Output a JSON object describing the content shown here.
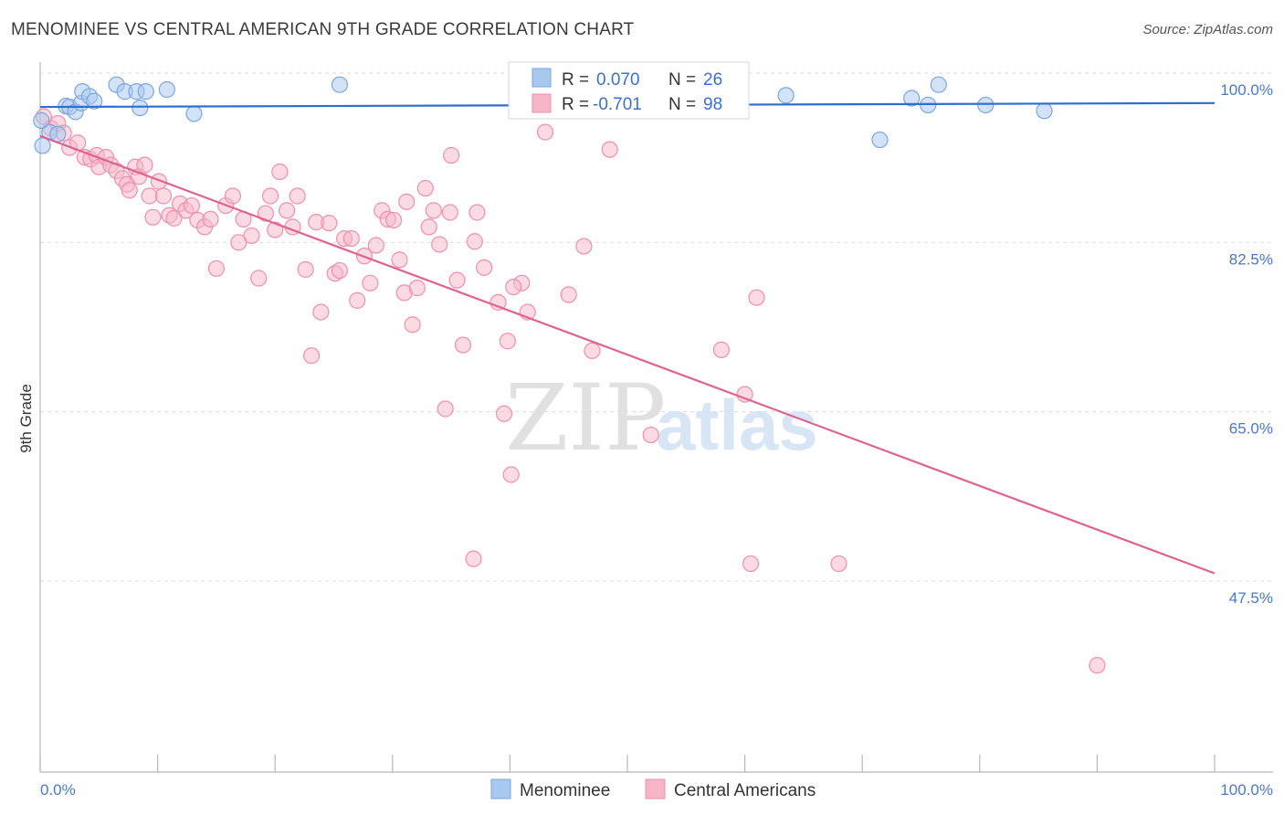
{
  "header": {
    "title": "MENOMINEE VS CENTRAL AMERICAN 9TH GRADE CORRELATION CHART",
    "source": "Source: ZipAtlas.com"
  },
  "watermark": {
    "zip": "ZIP",
    "atlas": "atlas"
  },
  "legend": {
    "rows": [
      {
        "r_label": "R = ",
        "r_value": "0.070",
        "n_label": "N = ",
        "n_value": "26",
        "color": "#a8c8f0"
      },
      {
        "r_label": "R = ",
        "r_value": "-0.701",
        "n_label": "N = ",
        "n_value": "98",
        "color": "#f7b6c8"
      }
    ]
  },
  "bottom_legend": {
    "items": [
      {
        "label": "Menominee",
        "color": "#a8c8f0"
      },
      {
        "label": "Central Americans",
        "color": "#f7b6c8"
      }
    ]
  },
  "chart_data": {
    "type": "scatter",
    "xlabel": "",
    "ylabel": "9th Grade",
    "xlim": [
      0,
      100
    ],
    "ylim": [
      32,
      102
    ],
    "x_tick_labels": [
      "0.0%",
      "100.0%"
    ],
    "y_ticks": [
      100.0,
      82.5,
      65.0,
      47.5
    ],
    "y_tick_labels": [
      "100.0%",
      "82.5%",
      "65.0%",
      "47.5%"
    ],
    "grid": true,
    "legend_placement": "top-center",
    "series": [
      {
        "name": "Menominee",
        "color": "#a8c8f0",
        "stroke": "#7aa6de",
        "line_color": "#2c6fd1",
        "trend": [
          [
            0,
            98.2
          ],
          [
            100,
            98.6
          ]
        ],
        "points": [
          [
            0.2,
            94.2
          ],
          [
            0.8,
            95.6
          ],
          [
            1.5,
            95.4
          ],
          [
            2.2,
            98.3
          ],
          [
            2.5,
            98.2
          ],
          [
            3.0,
            97.7
          ],
          [
            3.5,
            98.6
          ],
          [
            3.6,
            99.8
          ],
          [
            4.2,
            99.3
          ],
          [
            4.6,
            98.8
          ],
          [
            6.5,
            100.5
          ],
          [
            7.2,
            99.8
          ],
          [
            8.2,
            99.8
          ],
          [
            8.5,
            98.1
          ],
          [
            9.0,
            99.8
          ],
          [
            10.8,
            100.0
          ],
          [
            13.1,
            97.5
          ],
          [
            25.5,
            100.5
          ],
          [
            63.5,
            99.4
          ],
          [
            71.5,
            94.8
          ],
          [
            74.2,
            99.1
          ],
          [
            75.6,
            98.4
          ],
          [
            76.5,
            100.5
          ],
          [
            80.5,
            98.4
          ],
          [
            85.5,
            97.8
          ],
          [
            0.1,
            96.8
          ]
        ]
      },
      {
        "name": "Central Americans",
        "color": "#f7b6c8",
        "stroke": "#ee8fae",
        "line_color": "#e0628f",
        "trend": [
          [
            0,
            95.2
          ],
          [
            100,
            50.0
          ]
        ],
        "points": [
          [
            0.3,
            97.2
          ],
          [
            0.9,
            96.0
          ],
          [
            1.5,
            96.5
          ],
          [
            2.0,
            95.5
          ],
          [
            2.5,
            94.0
          ],
          [
            3.2,
            94.5
          ],
          [
            3.8,
            93.0
          ],
          [
            4.3,
            92.8
          ],
          [
            4.8,
            93.2
          ],
          [
            5.0,
            92.0
          ],
          [
            5.6,
            93.0
          ],
          [
            6.0,
            92.2
          ],
          [
            6.5,
            91.6
          ],
          [
            7.0,
            90.8
          ],
          [
            7.4,
            90.2
          ],
          [
            7.6,
            89.6
          ],
          [
            8.1,
            92.0
          ],
          [
            8.4,
            91.0
          ],
          [
            8.9,
            92.2
          ],
          [
            9.3,
            89.0
          ],
          [
            9.6,
            86.8
          ],
          [
            10.1,
            90.5
          ],
          [
            10.5,
            89.0
          ],
          [
            11.0,
            87.0
          ],
          [
            11.4,
            86.7
          ],
          [
            11.9,
            88.2
          ],
          [
            12.4,
            87.5
          ],
          [
            12.9,
            88.0
          ],
          [
            13.4,
            86.5
          ],
          [
            14.0,
            85.8
          ],
          [
            14.5,
            86.6
          ],
          [
            15.0,
            81.5
          ],
          [
            15.8,
            88.0
          ],
          [
            16.4,
            89.0
          ],
          [
            16.9,
            84.2
          ],
          [
            17.3,
            86.6
          ],
          [
            18.0,
            84.9
          ],
          [
            18.6,
            80.5
          ],
          [
            19.2,
            87.2
          ],
          [
            19.6,
            89.0
          ],
          [
            20.0,
            85.5
          ],
          [
            20.4,
            91.5
          ],
          [
            21.0,
            87.5
          ],
          [
            21.5,
            85.8
          ],
          [
            21.9,
            89.0
          ],
          [
            22.6,
            81.4
          ],
          [
            23.1,
            72.5
          ],
          [
            23.5,
            86.3
          ],
          [
            23.9,
            77.0
          ],
          [
            24.6,
            86.2
          ],
          [
            25.1,
            81.0
          ],
          [
            25.5,
            81.3
          ],
          [
            25.9,
            84.6
          ],
          [
            26.5,
            84.6
          ],
          [
            27.0,
            78.2
          ],
          [
            27.6,
            82.8
          ],
          [
            28.1,
            80.0
          ],
          [
            28.6,
            83.9
          ],
          [
            29.1,
            87.5
          ],
          [
            29.6,
            86.6
          ],
          [
            30.1,
            86.5
          ],
          [
            30.6,
            82.4
          ],
          [
            31.0,
            79.0
          ],
          [
            31.2,
            88.4
          ],
          [
            31.7,
            75.7
          ],
          [
            32.1,
            79.5
          ],
          [
            32.8,
            89.8
          ],
          [
            33.1,
            85.8
          ],
          [
            33.5,
            87.5
          ],
          [
            34.0,
            84.0
          ],
          [
            34.5,
            67.0
          ],
          [
            34.9,
            87.3
          ],
          [
            35.5,
            80.3
          ],
          [
            36.0,
            73.6
          ],
          [
            37.0,
            84.3
          ],
          [
            37.2,
            87.3
          ],
          [
            37.8,
            81.6
          ],
          [
            39.0,
            78.0
          ],
          [
            39.5,
            66.5
          ],
          [
            39.8,
            74.0
          ],
          [
            40.1,
            60.2
          ],
          [
            41.0,
            80.0
          ],
          [
            41.5,
            77.0
          ],
          [
            43.0,
            95.6
          ],
          [
            45.0,
            78.8
          ],
          [
            46.3,
            83.8
          ],
          [
            47.0,
            73.0
          ],
          [
            48.5,
            93.8
          ],
          [
            52.0,
            64.3
          ],
          [
            58.0,
            73.1
          ],
          [
            60.0,
            68.5
          ],
          [
            61.0,
            78.5
          ],
          [
            68.0,
            51.0
          ],
          [
            90.0,
            40.5
          ],
          [
            40.3,
            79.6
          ],
          [
            35.0,
            93.2
          ],
          [
            36.9,
            51.5
          ],
          [
            60.5,
            51.0
          ]
        ]
      }
    ]
  }
}
